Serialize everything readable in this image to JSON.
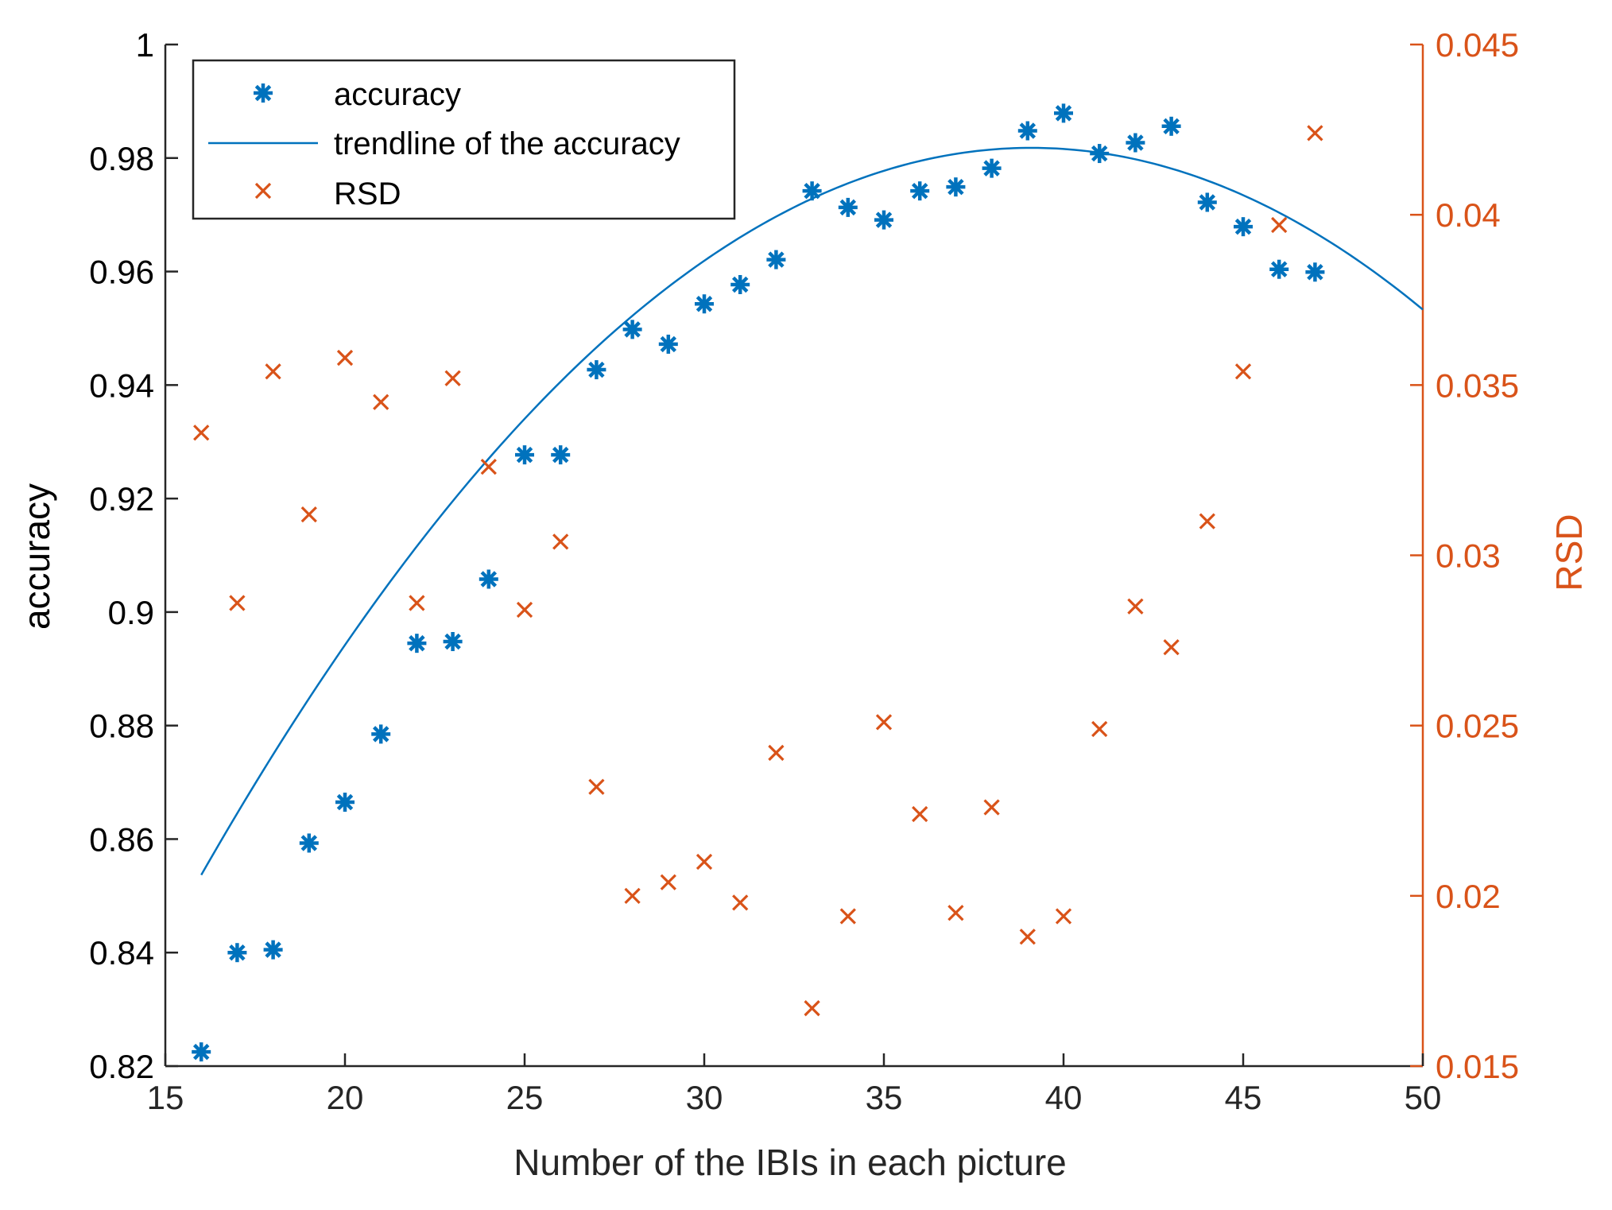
{
  "chart_data": {
    "type": "scatter",
    "title": "",
    "xlabel": "Number of the IBIs in each picture",
    "ylabel": "accuracy",
    "y2label": "RSD",
    "xlim": [
      15,
      50
    ],
    "ylim": [
      0.82,
      1.0
    ],
    "y2lim": [
      0.015,
      0.045
    ],
    "x_ticks": [
      "15",
      "20",
      "25",
      "30",
      "35",
      "40",
      "45",
      "50"
    ],
    "y_ticks": [
      "0.82",
      "0.84",
      "0.86",
      "0.88",
      "0.9",
      "0.92",
      "0.94",
      "0.96",
      "0.98",
      "1"
    ],
    "y2_ticks": [
      "0.015",
      "0.02",
      "0.025",
      "0.03",
      "0.035",
      "0.04",
      "0.045"
    ],
    "grid": false,
    "legend_position": "top-left",
    "colors": {
      "accuracy": "#0072BD",
      "rsd": "#D95319",
      "axis": "#262626"
    },
    "series": [
      {
        "name": "accuracy",
        "marker": "asterisk",
        "axis": "left",
        "x": [
          16,
          17,
          18,
          19,
          20,
          21,
          22,
          23,
          24,
          25,
          26,
          27,
          28,
          29,
          30,
          31,
          32,
          33,
          34,
          35,
          36,
          37,
          38,
          39,
          40,
          41,
          42,
          43,
          44,
          45,
          46,
          47
        ],
        "values": [
          0.8225,
          0.84,
          0.8405,
          0.8593,
          0.8665,
          0.8785,
          0.8945,
          0.8948,
          0.9058,
          0.9277,
          0.9277,
          0.9427,
          0.9498,
          0.9472,
          0.9543,
          0.9577,
          0.9621,
          0.9742,
          0.9713,
          0.9691,
          0.9742,
          0.9749,
          0.9782,
          0.9848,
          0.9879,
          0.9808,
          0.9827,
          0.9856,
          0.9722,
          0.9679,
          0.9604,
          0.9599
        ]
      },
      {
        "name": "trendline of the accuracy",
        "marker": "line",
        "axis": "left",
        "fit": "quadratic",
        "x_range": [
          16,
          50
        ],
        "coefficients": [
          -0.00024,
          0.01877,
          0.6148
        ]
      },
      {
        "name": "RSD",
        "marker": "x",
        "axis": "right",
        "x": [
          16,
          17,
          18,
          19,
          20,
          21,
          22,
          23,
          24,
          25,
          26,
          27,
          28,
          29,
          30,
          31,
          32,
          33,
          34,
          35,
          36,
          37,
          38,
          39,
          40,
          41,
          42,
          43,
          44,
          45,
          46,
          47
        ],
        "values": [
          0.0336,
          0.0286,
          0.0354,
          0.0312,
          0.0358,
          0.0345,
          0.0286,
          0.0352,
          0.0326,
          0.0284,
          0.0304,
          0.0232,
          0.02,
          0.0204,
          0.021,
          0.0198,
          0.0242,
          0.0167,
          0.0194,
          0.0251,
          0.0224,
          0.0195,
          0.0226,
          0.0188,
          0.0194,
          0.0249,
          0.0285,
          0.0273,
          0.031,
          0.0354,
          0.0397,
          0.0424
        ]
      }
    ]
  }
}
